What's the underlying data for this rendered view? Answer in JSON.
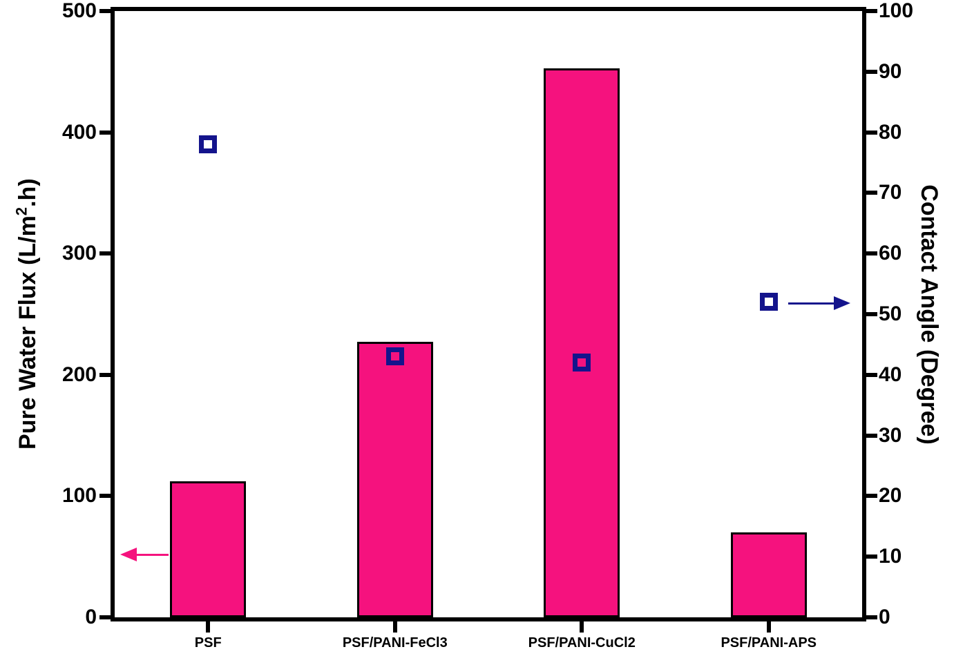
{
  "chart_data": {
    "type": "bar",
    "title": "",
    "categories": [
      "PSF",
      "PSF/PANI-FeCl3",
      "PSF/PANI-CuCl2",
      "PSF/PANI-APS"
    ],
    "series": [
      {
        "name": "Pure Water Flux",
        "type": "bar",
        "yaxis": "left",
        "values": [
          112,
          227,
          453,
          70
        ],
        "fill_color": "#F5127E",
        "edge_color": "#000000"
      },
      {
        "name": "Contact Angle",
        "type": "scatter",
        "marker": "open-square",
        "yaxis": "right",
        "values": [
          78,
          43,
          42,
          52
        ],
        "color": "#14148C"
      }
    ],
    "left_axis": {
      "title_pre": "Pure Water Flux (L/m",
      "title_sup": "2",
      "title_post": ".h)",
      "min": 0,
      "max": 500,
      "ticks": [
        0,
        100,
        200,
        300,
        400,
        500
      ]
    },
    "right_axis": {
      "title": "Contact Angle (Degree)",
      "min": 0,
      "max": 100,
      "ticks": [
        0,
        10,
        20,
        30,
        40,
        50,
        60,
        70,
        80,
        90,
        100
      ]
    },
    "annotations": [
      {
        "type": "arrow",
        "points_to": "left-axis",
        "direction": "left",
        "color": "#F5127E"
      },
      {
        "type": "arrow",
        "points_to": "right-axis",
        "direction": "right",
        "color": "#14148C"
      }
    ],
    "legend": "none",
    "grid": false,
    "background": "#FFFFFF"
  }
}
